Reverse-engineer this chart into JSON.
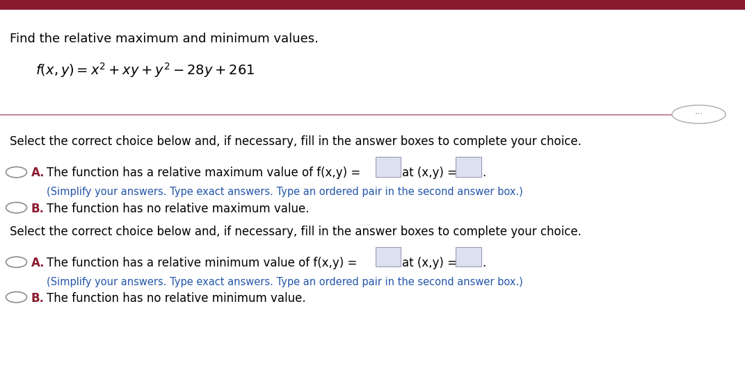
{
  "title_text": "Find the relative maximum and minimum values.",
  "top_bar_color": "#8b1a2e",
  "divider_color": "#b05070",
  "background_color": "#ffffff",
  "select_text": "Select the correct choice below and, if necessary, fill in the answer boxes to complete your choice.",
  "max_option_A": "The function has a relative maximum value of f(x,y) =",
  "max_option_A_end": "at (x,y) =",
  "max_option_A_sub": "(Simplify your answers. Type exact answers. Type an ordered pair in the second answer box.)",
  "max_option_B": "The function has no relative maximum value.",
  "min_option_A": "The function has a relative minimum value of f(x,y) =",
  "min_option_A_end": "at (x,y) =",
  "min_option_A_sub": "(Simplify your answers. Type exact answers. Type an ordered pair in the second answer box.)",
  "min_option_B": "The function has no relative minimum value.",
  "text_color_main": "#000000",
  "text_color_blue": "#2255aa",
  "option_label_color": "#8b1a2e",
  "dots_button_text": "···",
  "title_fontsize": 13,
  "body_fontsize": 12,
  "small_fontsize": 10.5
}
